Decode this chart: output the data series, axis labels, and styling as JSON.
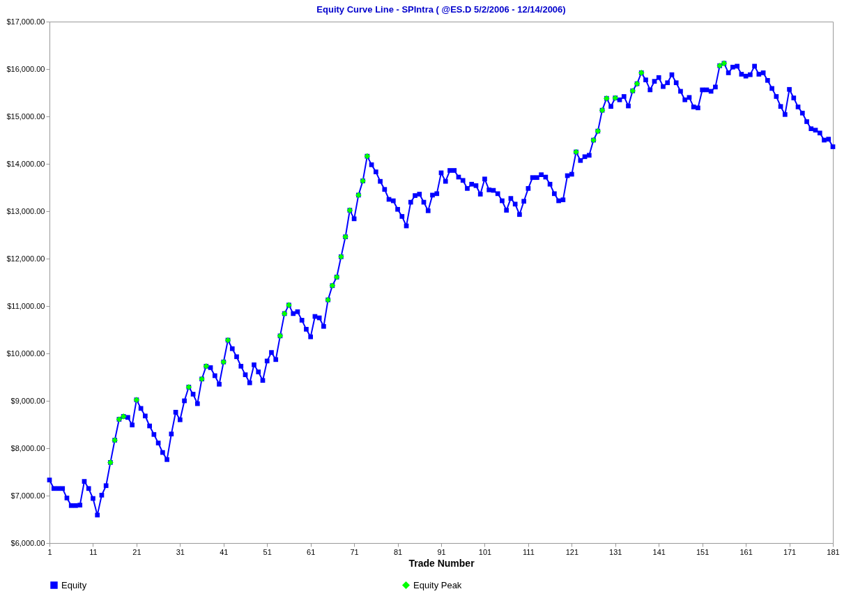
{
  "chart_data": {
    "type": "line",
    "title": "Equity Curve Line -  SPIntra ( @ES.D 5/2/2006 - 12/14/2006)",
    "xlabel": "Trade Number",
    "xlim": [
      1,
      181
    ],
    "xticks": [
      1,
      11,
      21,
      31,
      41,
      51,
      61,
      71,
      81,
      91,
      101,
      111,
      121,
      131,
      141,
      151,
      161,
      171,
      181
    ],
    "ylim": [
      6000,
      17000
    ],
    "yticks": [
      {
        "value": 6000,
        "label": "$6,000.00"
      },
      {
        "value": 7000,
        "label": "$7,000.00"
      },
      {
        "value": 8000,
        "label": "$8,000.00"
      },
      {
        "value": 9000,
        "label": "$9,000.00"
      },
      {
        "value": 10000,
        "label": "$10,000.00"
      },
      {
        "value": 11000,
        "label": "$11,000.00"
      },
      {
        "value": 12000,
        "label": "$12,000.00"
      },
      {
        "value": 13000,
        "label": "$13,000.00"
      },
      {
        "value": 14000,
        "label": "$14,000.00"
      },
      {
        "value": 15000,
        "label": "$15,000.00"
      },
      {
        "value": 16000,
        "label": "$16,000.00"
      },
      {
        "value": 17000,
        "label": "$17,000.00"
      }
    ],
    "grid": false,
    "legend": "bottom",
    "line_style": "solid",
    "series": [
      {
        "name": "Equity",
        "marker": "square",
        "color": "#0000ff",
        "x": [
          1,
          2,
          3,
          4,
          5,
          6,
          7,
          8,
          9,
          10,
          11,
          12,
          13,
          14,
          15,
          16,
          17,
          18,
          19,
          20,
          21,
          22,
          23,
          24,
          25,
          26,
          27,
          28,
          29,
          30,
          31,
          32,
          33,
          34,
          35,
          36,
          37,
          38,
          39,
          40,
          41,
          42,
          43,
          44,
          45,
          46,
          47,
          48,
          49,
          50,
          51,
          52,
          53,
          54,
          55,
          56,
          57,
          58,
          59,
          60,
          61,
          62,
          63,
          64,
          65,
          66,
          67,
          68,
          69,
          70,
          71,
          72,
          73,
          74,
          75,
          76,
          77,
          78,
          79,
          80,
          81,
          82,
          83,
          84,
          85,
          86,
          87,
          88,
          89,
          90,
          91,
          92,
          93,
          94,
          95,
          96,
          97,
          98,
          99,
          100,
          101,
          102,
          103,
          104,
          105,
          106,
          107,
          108,
          109,
          110,
          111,
          112,
          113,
          114,
          115,
          116,
          117,
          118,
          119,
          120,
          121,
          122,
          123,
          124,
          125,
          126,
          127,
          128,
          129,
          130,
          131,
          132,
          133,
          134,
          135,
          136,
          137,
          138,
          139,
          140,
          141,
          142,
          143,
          144,
          145,
          146,
          147,
          148,
          149,
          150,
          151,
          152,
          153,
          154,
          155,
          156,
          157,
          158,
          159,
          160,
          161,
          162,
          163,
          164,
          165,
          166,
          167,
          168,
          169,
          170,
          171,
          172,
          173,
          174,
          175,
          176,
          177,
          178,
          179,
          180,
          181
        ],
        "values": [
          7330,
          7150,
          7150,
          7150,
          6950,
          6790,
          6790,
          6800,
          7300,
          7150,
          6940,
          6590,
          7010,
          7210,
          7700,
          8170,
          8610,
          8670,
          8650,
          8490,
          9020,
          8840,
          8680,
          8470,
          8290,
          8110,
          7910,
          7760,
          8300,
          8760,
          8600,
          9000,
          9290,
          9140,
          8940,
          9460,
          9730,
          9700,
          9530,
          9350,
          9820,
          10280,
          10100,
          9930,
          9730,
          9550,
          9380,
          9760,
          9610,
          9430,
          9840,
          10020,
          9870,
          10370,
          10840,
          11020,
          10840,
          10880,
          10700,
          10510,
          10350,
          10780,
          10750,
          10570,
          11130,
          11430,
          11610,
          12040,
          12460,
          13020,
          12840,
          13340,
          13640,
          14160,
          13980,
          13830,
          13630,
          13460,
          13250,
          13220,
          13040,
          12890,
          12690,
          13190,
          13330,
          13360,
          13190,
          13010,
          13340,
          13370,
          13810,
          13630,
          13860,
          13860,
          13720,
          13650,
          13480,
          13570,
          13540,
          13360,
          13680,
          13450,
          13440,
          13370,
          13220,
          13020,
          13270,
          13150,
          12930,
          13210,
          13480,
          13710,
          13710,
          13770,
          13720,
          13570,
          13370,
          13220,
          13240,
          13750,
          13780,
          14250,
          14070,
          14150,
          14180,
          14500,
          14690,
          15130,
          15380,
          15210,
          15390,
          15350,
          15420,
          15220,
          15540,
          15690,
          15920,
          15770,
          15560,
          15740,
          15820,
          15630,
          15710,
          15880,
          15710,
          15530,
          15350,
          15400,
          15200,
          15180,
          15560,
          15560,
          15530,
          15620,
          16070,
          16120,
          15920,
          16040,
          16060,
          15890,
          15850,
          15880,
          16060,
          15890,
          15920,
          15760,
          15590,
          15420,
          15210,
          15040,
          15570,
          15390,
          15200,
          15070,
          14890,
          14740,
          14710,
          14650,
          14500,
          14520,
          14360
        ]
      },
      {
        "name": "Equity Peak",
        "type": "scatter",
        "marker": "diamond",
        "color": "#00ff00",
        "x": [
          15,
          16,
          17,
          18,
          21,
          33,
          36,
          37,
          41,
          42,
          54,
          55,
          56,
          65,
          66,
          67,
          68,
          69,
          70,
          72,
          73,
          74,
          122,
          126,
          127,
          128,
          129,
          131,
          135,
          136,
          137,
          155,
          156
        ],
        "values": [
          7700,
          8170,
          8610,
          8670,
          9020,
          9290,
          9460,
          9730,
          9820,
          10280,
          10370,
          10840,
          11020,
          11130,
          11430,
          11610,
          12040,
          12460,
          13020,
          13340,
          13640,
          14160,
          14250,
          14500,
          14690,
          15130,
          15380,
          15390,
          15540,
          15690,
          15920,
          16070,
          16120
        ]
      }
    ]
  }
}
